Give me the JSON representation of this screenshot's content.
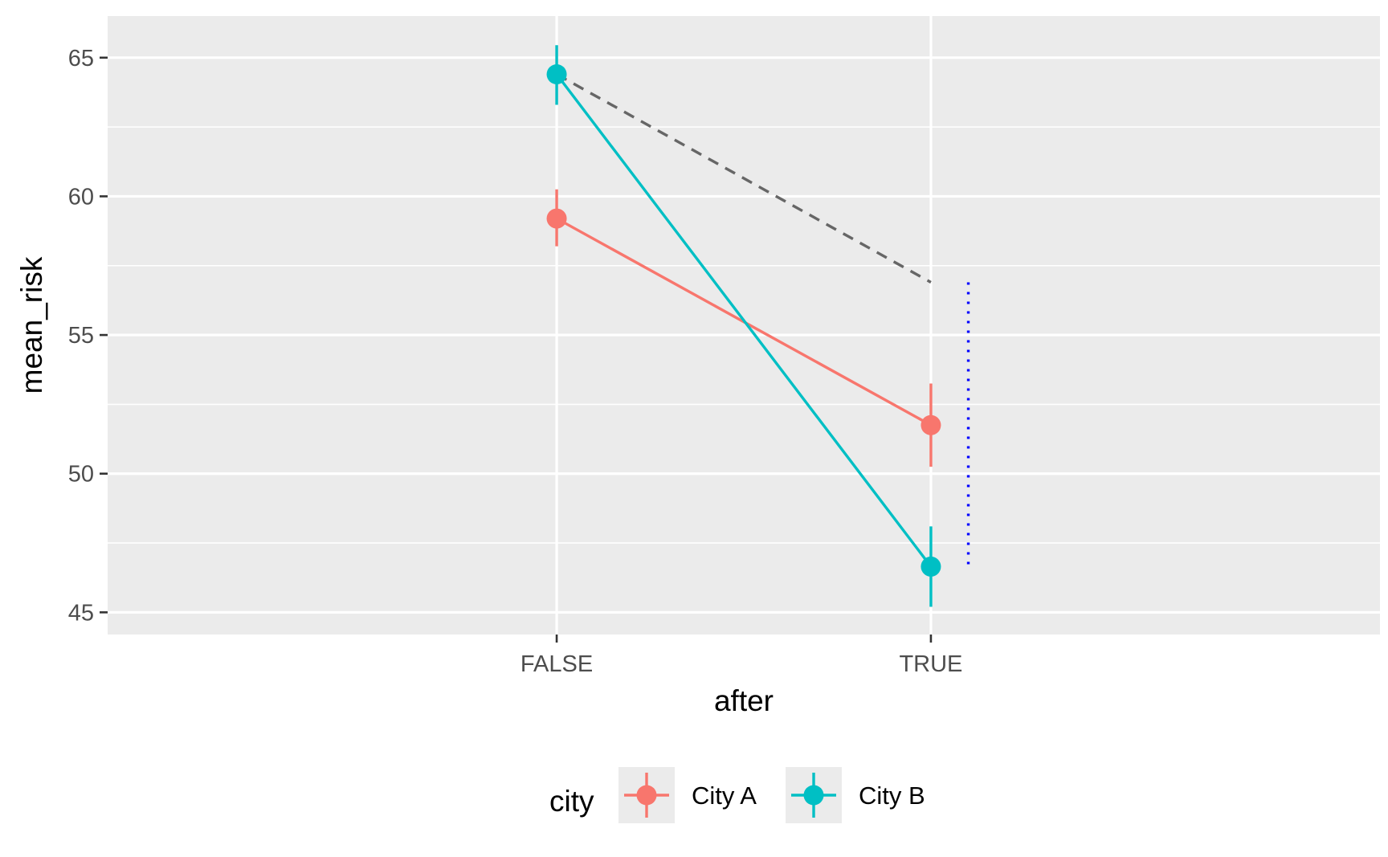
{
  "chart_data": {
    "type": "line",
    "xlabel": "after",
    "ylabel": "mean_risk",
    "categories": [
      "FALSE",
      "TRUE"
    ],
    "ylim": [
      44.2,
      66.5
    ],
    "yticks": [
      45,
      50,
      55,
      60,
      65
    ],
    "grid": true,
    "legend": {
      "title": "city",
      "position": "bottom"
    },
    "series": [
      {
        "name": "City A",
        "color": "#F8766D",
        "values": [
          59.2,
          51.75
        ],
        "error_low": [
          58.2,
          50.25
        ],
        "error_high": [
          60.25,
          53.25
        ]
      },
      {
        "name": "City B",
        "color": "#00BFC4",
        "values": [
          64.4,
          46.65
        ],
        "error_low": [
          63.3,
          45.2
        ],
        "error_high": [
          65.45,
          48.1
        ]
      }
    ],
    "annotations": [
      {
        "type": "dashed-line",
        "color": "#666666",
        "from": [
          "FALSE",
          64.4
        ],
        "to": [
          "TRUE",
          56.9
        ]
      },
      {
        "type": "dotted-vertical-line",
        "color": "#0000FF",
        "x_offset": 0.1,
        "from_y": 46.65,
        "to_y": 56.9
      }
    ]
  }
}
